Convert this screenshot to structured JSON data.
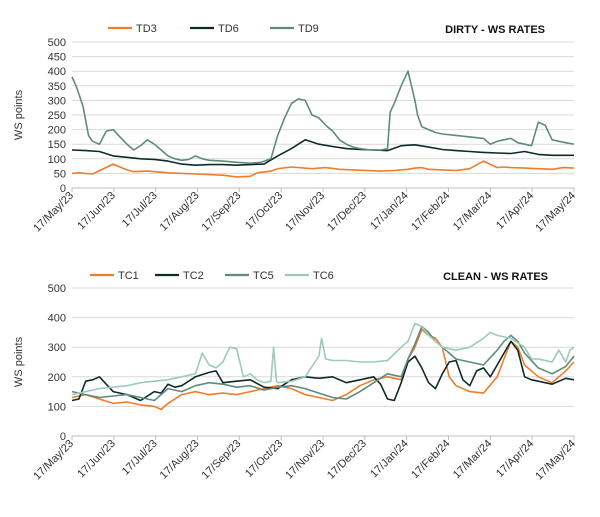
{
  "chart_data": [
    {
      "type": "line",
      "title": "DIRTY - WS RATES",
      "xlabel": "",
      "ylabel": "WS points",
      "ylim": [
        0,
        500
      ],
      "yticks": [
        0,
        50,
        100,
        150,
        200,
        250,
        300,
        350,
        400,
        450,
        500
      ],
      "categories": [
        "17/May/23",
        "17/Jun/23",
        "17/Jul/23",
        "17/Aug/23",
        "17/Sep/23",
        "17/Oct/23",
        "17/Nov/23",
        "17/Dec/23",
        "17/Jan/24",
        "17/Feb/24",
        "17/Mar/24",
        "17/Apr/24",
        "17/May/24"
      ],
      "x_domain": [
        0,
        366
      ],
      "legend_position": "top-left",
      "series": [
        {
          "name": "TD3",
          "color": "#ee7d2c",
          "x": [
            0,
            5,
            15,
            30,
            40,
            45,
            55,
            70,
            90,
            110,
            120,
            130,
            135,
            145,
            150,
            160,
            175,
            185,
            195,
            205,
            215,
            225,
            235,
            245,
            250,
            255,
            260,
            270,
            280,
            290,
            300,
            310,
            315,
            320,
            330,
            340,
            350,
            358,
            366
          ],
          "y": [
            50,
            52,
            48,
            82,
            62,
            56,
            58,
            52,
            48,
            44,
            38,
            40,
            52,
            58,
            66,
            72,
            66,
            70,
            64,
            62,
            60,
            58,
            60,
            64,
            68,
            70,
            64,
            62,
            60,
            66,
            92,
            70,
            72,
            70,
            68,
            66,
            64,
            70,
            68
          ]
        },
        {
          "name": "TD6",
          "color": "#0d2b2a",
          "x": [
            0,
            10,
            20,
            30,
            40,
            50,
            60,
            70,
            80,
            90,
            100,
            110,
            120,
            130,
            140,
            150,
            160,
            170,
            180,
            190,
            200,
            210,
            220,
            230,
            240,
            250,
            260,
            270,
            280,
            290,
            300,
            310,
            320,
            330,
            340,
            350,
            366
          ],
          "y": [
            130,
            128,
            125,
            110,
            105,
            100,
            98,
            92,
            82,
            78,
            80,
            80,
            78,
            80,
            82,
            110,
            135,
            165,
            150,
            142,
            135,
            132,
            130,
            128,
            145,
            148,
            140,
            132,
            128,
            125,
            122,
            120,
            118,
            125,
            115,
            112,
            112
          ]
        },
        {
          "name": "TD9",
          "color": "#5e8b7e",
          "x": [
            0,
            3,
            8,
            12,
            15,
            20,
            25,
            30,
            35,
            40,
            45,
            50,
            55,
            60,
            65,
            70,
            75,
            80,
            85,
            90,
            95,
            100,
            110,
            120,
            130,
            138,
            145,
            150,
            155,
            160,
            165,
            170,
            175,
            180,
            185,
            190,
            195,
            200,
            205,
            210,
            215,
            220,
            225,
            230,
            232,
            235,
            240,
            245,
            250,
            252,
            255,
            260,
            265,
            270,
            280,
            290,
            300,
            305,
            310,
            315,
            320,
            325,
            330,
            335,
            340,
            345,
            350,
            355,
            360,
            366
          ],
          "y": [
            380,
            350,
            280,
            180,
            160,
            150,
            195,
            200,
            175,
            150,
            130,
            145,
            165,
            150,
            130,
            110,
            100,
            95,
            98,
            110,
            100,
            95,
            92,
            88,
            85,
            88,
            100,
            180,
            240,
            290,
            305,
            300,
            250,
            240,
            215,
            195,
            165,
            150,
            140,
            135,
            132,
            130,
            130,
            135,
            260,
            290,
            350,
            400,
            300,
            250,
            210,
            200,
            190,
            185,
            180,
            175,
            170,
            150,
            160,
            165,
            170,
            155,
            150,
            145,
            225,
            215,
            165,
            160,
            155,
            150
          ]
        }
      ]
    },
    {
      "type": "line",
      "title": "CLEAN - WS RATES",
      "xlabel": "",
      "ylabel": "WS points",
      "ylim": [
        0,
        500
      ],
      "yticks": [
        0,
        100,
        200,
        300,
        400,
        500
      ],
      "categories": [
        "17/May/23",
        "17/Jun/23",
        "17/Jul/23",
        "17/Aug/23",
        "17/Sep/23",
        "17/Oct/23",
        "17/Nov/23",
        "17/Dec/23",
        "17/Jan/24",
        "17/Feb/24",
        "17/Mar/24",
        "17/Apr/24",
        "17/May/24"
      ],
      "x_domain": [
        0,
        366
      ],
      "legend_position": "top-left",
      "series": [
        {
          "name": "TC1",
          "color": "#ee7d2c",
          "x": [
            0,
            10,
            20,
            30,
            40,
            50,
            60,
            65,
            70,
            80,
            90,
            100,
            110,
            120,
            130,
            140,
            150,
            160,
            170,
            180,
            190,
            200,
            210,
            220,
            230,
            240,
            245,
            250,
            255,
            260,
            265,
            270,
            275,
            280,
            290,
            300,
            310,
            315,
            320,
            325,
            330,
            340,
            350,
            360,
            366
          ],
          "y": [
            130,
            140,
            125,
            110,
            115,
            105,
            100,
            90,
            110,
            140,
            150,
            140,
            145,
            140,
            150,
            160,
            170,
            160,
            140,
            130,
            120,
            140,
            170,
            190,
            200,
            190,
            260,
            300,
            360,
            340,
            330,
            300,
            200,
            170,
            150,
            145,
            200,
            260,
            320,
            300,
            240,
            200,
            180,
            220,
            250
          ]
        },
        {
          "name": "TC2",
          "color": "#0d2b2a",
          "x": [
            0,
            5,
            10,
            15,
            20,
            30,
            40,
            50,
            60,
            65,
            70,
            75,
            80,
            90,
            100,
            105,
            110,
            120,
            130,
            140,
            150,
            160,
            170,
            180,
            190,
            200,
            210,
            220,
            225,
            230,
            235,
            240,
            245,
            250,
            255,
            260,
            265,
            270,
            275,
            280,
            285,
            290,
            295,
            300,
            305,
            310,
            315,
            320,
            325,
            330,
            335,
            340,
            350,
            360,
            366
          ],
          "y": [
            120,
            125,
            185,
            190,
            200,
            150,
            140,
            120,
            150,
            145,
            175,
            165,
            170,
            200,
            215,
            220,
            180,
            185,
            190,
            165,
            160,
            190,
            200,
            195,
            200,
            180,
            190,
            200,
            175,
            125,
            120,
            180,
            250,
            270,
            230,
            180,
            160,
            210,
            250,
            255,
            190,
            170,
            220,
            230,
            200,
            240,
            280,
            320,
            290,
            200,
            190,
            185,
            175,
            195,
            190
          ]
        },
        {
          "name": "TC5",
          "color": "#5e8b7e",
          "x": [
            0,
            10,
            20,
            30,
            40,
            50,
            60,
            70,
            80,
            90,
            100,
            110,
            120,
            130,
            140,
            150,
            160,
            170,
            180,
            190,
            200,
            210,
            220,
            230,
            240,
            245,
            250,
            255,
            260,
            265,
            270,
            275,
            280,
            290,
            300,
            310,
            315,
            320,
            325,
            330,
            340,
            350,
            360,
            366
          ],
          "y": [
            150,
            140,
            130,
            135,
            140,
            130,
            120,
            160,
            150,
            170,
            180,
            175,
            165,
            170,
            155,
            165,
            170,
            160,
            145,
            130,
            125,
            150,
            180,
            210,
            200,
            260,
            310,
            370,
            350,
            320,
            300,
            280,
            260,
            250,
            240,
            290,
            320,
            340,
            320,
            280,
            230,
            210,
            235,
            270
          ]
        },
        {
          "name": "TC6",
          "color": "#9ec9bd",
          "x": [
            0,
            10,
            20,
            30,
            40,
            50,
            60,
            70,
            80,
            90,
            95,
            100,
            105,
            110,
            115,
            120,
            125,
            130,
            135,
            140,
            145,
            147,
            149,
            150,
            160,
            170,
            180,
            182,
            185,
            190,
            200,
            210,
            220,
            230,
            240,
            245,
            250,
            255,
            260,
            270,
            280,
            290,
            300,
            305,
            310,
            320,
            330,
            335,
            340,
            350,
            355,
            360,
            363,
            366
          ],
          "y": [
            140,
            150,
            160,
            165,
            170,
            180,
            185,
            190,
            200,
            210,
            280,
            240,
            230,
            250,
            300,
            295,
            200,
            210,
            190,
            180,
            185,
            300,
            185,
            180,
            185,
            200,
            270,
            330,
            260,
            255,
            255,
            250,
            250,
            255,
            300,
            320,
            380,
            370,
            340,
            300,
            290,
            300,
            330,
            350,
            340,
            330,
            300,
            260,
            260,
            250,
            290,
            250,
            290,
            300
          ]
        }
      ]
    }
  ]
}
